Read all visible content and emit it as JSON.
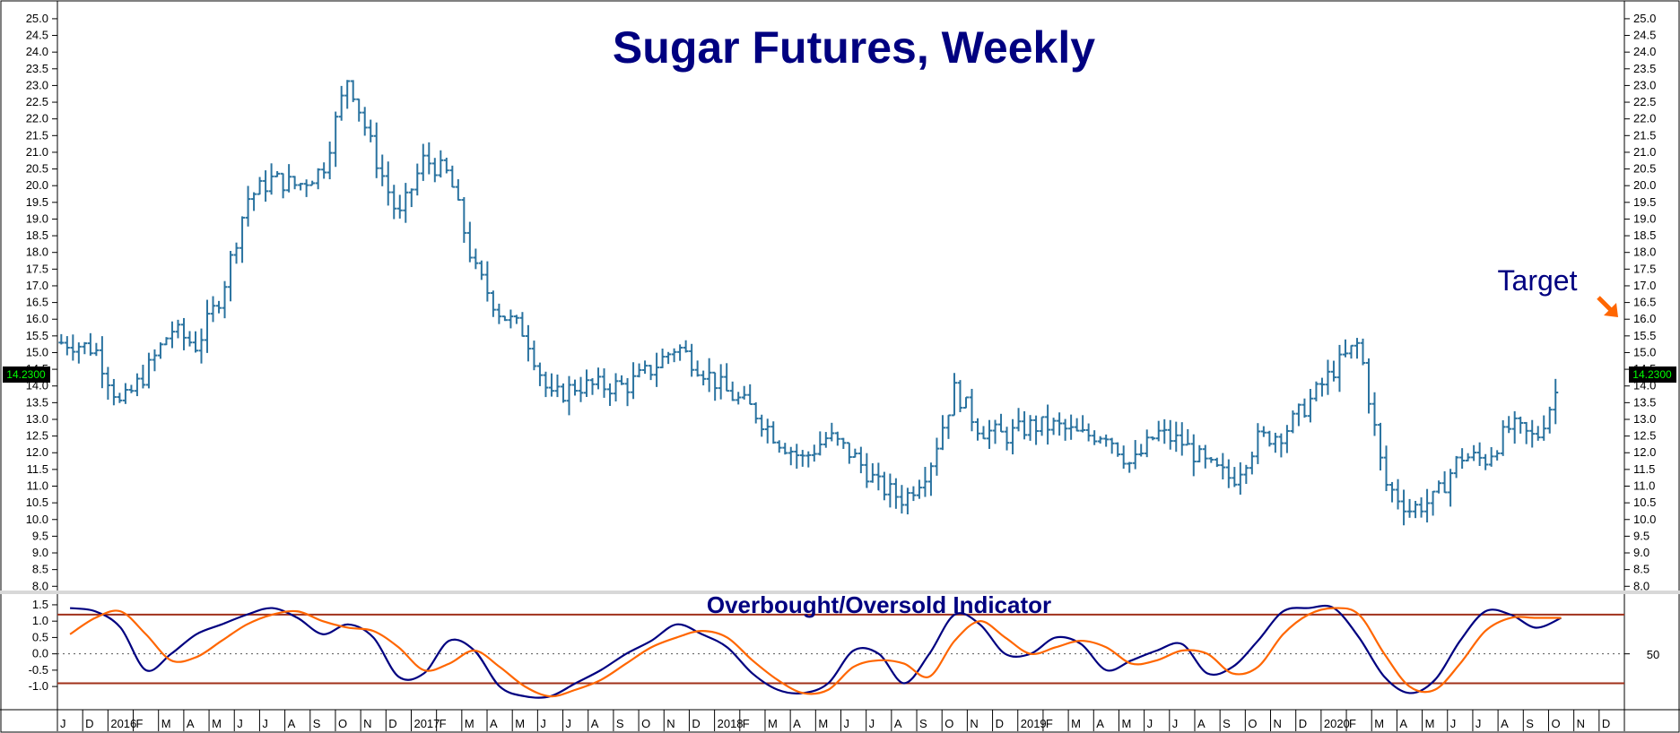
{
  "chart_data": [
    {
      "type": "ohlc",
      "title": "Sugar Futures, Weekly",
      "ylim": [
        7.9,
        25.4
      ],
      "y_ticks": [
        "8.0",
        "8.5",
        "9.0",
        "9.5",
        "10.0",
        "10.5",
        "11.0",
        "11.5",
        "12.0",
        "12.5",
        "13.0",
        "13.5",
        "14.0",
        "14.5",
        "15.0",
        "15.5",
        "16.0",
        "16.5",
        "17.0",
        "17.5",
        "18.0",
        "18.5",
        "19.0",
        "19.5",
        "20.0",
        "20.5",
        "21.0",
        "21.5",
        "22.0",
        "22.5",
        "23.0",
        "23.5",
        "24.0",
        "24.5",
        "25.0"
      ],
      "last_price": "14.2300",
      "annotation": "Target",
      "x_labels": [
        "J",
        "D",
        "2016",
        "F",
        "M",
        "A",
        "M",
        "J",
        "J",
        "A",
        "S",
        "O",
        "N",
        "D",
        "2017",
        "F",
        "M",
        "A",
        "M",
        "J",
        "J",
        "A",
        "S",
        "O",
        "N",
        "D",
        "2018",
        "F",
        "M",
        "A",
        "M",
        "J",
        "J",
        "A",
        "S",
        "O",
        "N",
        "D",
        "2019",
        "F",
        "M",
        "A",
        "M",
        "J",
        "J",
        "A",
        "S",
        "O",
        "N",
        "D",
        "2020",
        "F",
        "M",
        "A",
        "M",
        "J",
        "J",
        "A",
        "S",
        "O",
        "N",
        "D"
      ],
      "price_path": [
        [
          "2015-11",
          15.3
        ],
        [
          "2015-12",
          15.1
        ],
        [
          "2016-01",
          13.4
        ],
        [
          "2016-02",
          14.4
        ],
        [
          "2016-03",
          15.7
        ],
        [
          "2016-04",
          15.2
        ],
        [
          "2016-05",
          16.8
        ],
        [
          "2016-06",
          19.6
        ],
        [
          "2016-07",
          20.2
        ],
        [
          "2016-08",
          20.0
        ],
        [
          "2016-09",
          20.5
        ],
        [
          "2016-10",
          23.3
        ],
        [
          "2016-11",
          21.0
        ],
        [
          "2016-12",
          19.0
        ],
        [
          "2017-01",
          20.8
        ],
        [
          "2017-02",
          20.3
        ],
        [
          "2017-03",
          17.5
        ],
        [
          "2017-04",
          16.2
        ],
        [
          "2017-05",
          15.6
        ],
        [
          "2017-06",
          13.6
        ],
        [
          "2017-07",
          14.0
        ],
        [
          "2017-08",
          14.0
        ],
        [
          "2017-09",
          14.0
        ],
        [
          "2017-10",
          14.5
        ],
        [
          "2017-11",
          15.2
        ],
        [
          "2017-12",
          14.5
        ],
        [
          "2018-01",
          13.8
        ],
        [
          "2018-02",
          13.3
        ],
        [
          "2018-03",
          12.4
        ],
        [
          "2018-04",
          11.8
        ],
        [
          "2018-05",
          12.5
        ],
        [
          "2018-06",
          11.9
        ],
        [
          "2018-07",
          11.0
        ],
        [
          "2018-08",
          10.6
        ],
        [
          "2018-09",
          11.6
        ],
        [
          "2018-10",
          13.9
        ],
        [
          "2018-11",
          12.7
        ],
        [
          "2018-12",
          12.5
        ],
        [
          "2019-01",
          12.8
        ],
        [
          "2019-02",
          12.8
        ],
        [
          "2019-03",
          12.5
        ],
        [
          "2019-04",
          12.6
        ],
        [
          "2019-05",
          11.6
        ],
        [
          "2019-06",
          12.6
        ],
        [
          "2019-07",
          12.3
        ],
        [
          "2019-08",
          11.6
        ],
        [
          "2019-09",
          11.2
        ],
        [
          "2019-10",
          12.4
        ],
        [
          "2019-11",
          12.6
        ],
        [
          "2019-12",
          13.5
        ],
        [
          "2020-01",
          14.5
        ],
        [
          "2020-02",
          15.3
        ],
        [
          "2020-03",
          11.1
        ],
        [
          "2020-04",
          10.3
        ],
        [
          "2020-05",
          10.6
        ],
        [
          "2020-06",
          11.9
        ],
        [
          "2020-07",
          11.8
        ],
        [
          "2020-08",
          12.8
        ],
        [
          "2020-09",
          12.4
        ],
        [
          "2020-10",
          14.2
        ]
      ]
    },
    {
      "type": "line",
      "title": "Overbought/Oversold Indicator",
      "ylim": [
        -1.6,
        1.8
      ],
      "y_ticks": [
        "-1.0",
        "-0.5",
        "0.0",
        "0.5",
        "1.0",
        "1.5"
      ],
      "right_axis_label": "50",
      "levels": [
        1.2,
        0.0,
        -0.9
      ],
      "series": [
        {
          "color": "#000080",
          "points": [
            [
              "2015-11",
              1.4
            ],
            [
              "2015-12",
              1.3
            ],
            [
              "2016-01",
              0.8
            ],
            [
              "2016-02",
              -0.5
            ],
            [
              "2016-03",
              0.0
            ],
            [
              "2016-04",
              0.6
            ],
            [
              "2016-05",
              0.9
            ],
            [
              "2016-06",
              1.2
            ],
            [
              "2016-07",
              1.4
            ],
            [
              "2016-08",
              1.1
            ],
            [
              "2016-09",
              0.6
            ],
            [
              "2016-10",
              0.9
            ],
            [
              "2016-11",
              0.5
            ],
            [
              "2016-12",
              -0.7
            ],
            [
              "2017-01",
              -0.6
            ],
            [
              "2017-02",
              0.4
            ],
            [
              "2017-03",
              0.1
            ],
            [
              "2017-04",
              -1.0
            ],
            [
              "2017-05",
              -1.3
            ],
            [
              "2017-06",
              -1.3
            ],
            [
              "2017-07",
              -0.9
            ],
            [
              "2017-08",
              -0.5
            ],
            [
              "2017-09",
              0.0
            ],
            [
              "2017-10",
              0.4
            ],
            [
              "2017-11",
              0.9
            ],
            [
              "2017-12",
              0.6
            ],
            [
              "2018-01",
              0.2
            ],
            [
              "2018-02",
              -0.6
            ],
            [
              "2018-03",
              -1.1
            ],
            [
              "2018-04",
              -1.2
            ],
            [
              "2018-05",
              -0.9
            ],
            [
              "2018-06",
              0.1
            ],
            [
              "2018-07",
              0.0
            ],
            [
              "2018-08",
              -0.9
            ],
            [
              "2018-09",
              0.0
            ],
            [
              "2018-10",
              1.2
            ],
            [
              "2018-11",
              0.9
            ],
            [
              "2018-12",
              0.0
            ],
            [
              "2019-01",
              0.0
            ],
            [
              "2019-02",
              0.5
            ],
            [
              "2019-03",
              0.3
            ],
            [
              "2019-04",
              -0.5
            ],
            [
              "2019-05",
              -0.2
            ],
            [
              "2019-06",
              0.1
            ],
            [
              "2019-07",
              0.3
            ],
            [
              "2019-08",
              -0.6
            ],
            [
              "2019-09",
              -0.4
            ],
            [
              "2019-10",
              0.4
            ],
            [
              "2019-11",
              1.3
            ],
            [
              "2019-12",
              1.4
            ],
            [
              "2020-01",
              1.4
            ],
            [
              "2020-02",
              0.5
            ],
            [
              "2020-03",
              -0.7
            ],
            [
              "2020-04",
              -1.2
            ],
            [
              "2020-05",
              -0.8
            ],
            [
              "2020-06",
              0.4
            ],
            [
              "2020-07",
              1.3
            ],
            [
              "2020-08",
              1.2
            ],
            [
              "2020-09",
              0.8
            ],
            [
              "2020-10",
              1.1
            ]
          ]
        },
        {
          "color": "#ff6600",
          "points": [
            [
              "2015-11",
              0.6
            ],
            [
              "2015-12",
              1.1
            ],
            [
              "2016-01",
              1.3
            ],
            [
              "2016-02",
              0.6
            ],
            [
              "2016-03",
              -0.2
            ],
            [
              "2016-04",
              -0.1
            ],
            [
              "2016-05",
              0.4
            ],
            [
              "2016-06",
              0.9
            ],
            [
              "2016-07",
              1.2
            ],
            [
              "2016-08",
              1.3
            ],
            [
              "2016-09",
              1.0
            ],
            [
              "2016-10",
              0.8
            ],
            [
              "2016-11",
              0.7
            ],
            [
              "2016-12",
              0.2
            ],
            [
              "2017-01",
              -0.5
            ],
            [
              "2017-02",
              -0.3
            ],
            [
              "2017-03",
              0.1
            ],
            [
              "2017-04",
              -0.4
            ],
            [
              "2017-05",
              -1.0
            ],
            [
              "2017-06",
              -1.3
            ],
            [
              "2017-07",
              -1.1
            ],
            [
              "2017-08",
              -0.8
            ],
            [
              "2017-09",
              -0.3
            ],
            [
              "2017-10",
              0.2
            ],
            [
              "2017-11",
              0.5
            ],
            [
              "2017-12",
              0.7
            ],
            [
              "2018-01",
              0.5
            ],
            [
              "2018-02",
              -0.2
            ],
            [
              "2018-03",
              -0.8
            ],
            [
              "2018-04",
              -1.2
            ],
            [
              "2018-05",
              -1.1
            ],
            [
              "2018-06",
              -0.4
            ],
            [
              "2018-07",
              -0.2
            ],
            [
              "2018-08",
              -0.3
            ],
            [
              "2018-09",
              -0.7
            ],
            [
              "2018-10",
              0.4
            ],
            [
              "2018-11",
              1.0
            ],
            [
              "2018-12",
              0.5
            ],
            [
              "2019-01",
              0.0
            ],
            [
              "2019-02",
              0.2
            ],
            [
              "2019-03",
              0.4
            ],
            [
              "2019-04",
              0.2
            ],
            [
              "2019-05",
              -0.3
            ],
            [
              "2019-06",
              -0.2
            ],
            [
              "2019-07",
              0.1
            ],
            [
              "2019-08",
              0.0
            ],
            [
              "2019-09",
              -0.6
            ],
            [
              "2019-10",
              -0.4
            ],
            [
              "2019-11",
              0.6
            ],
            [
              "2019-12",
              1.2
            ],
            [
              "2020-01",
              1.4
            ],
            [
              "2020-02",
              1.2
            ],
            [
              "2020-03",
              0.0
            ],
            [
              "2020-04",
              -1.0
            ],
            [
              "2020-05",
              -1.1
            ],
            [
              "2020-06",
              -0.3
            ],
            [
              "2020-07",
              0.7
            ],
            [
              "2020-08",
              1.1
            ],
            [
              "2020-09",
              1.1
            ],
            [
              "2020-10",
              1.1
            ]
          ]
        }
      ]
    }
  ]
}
